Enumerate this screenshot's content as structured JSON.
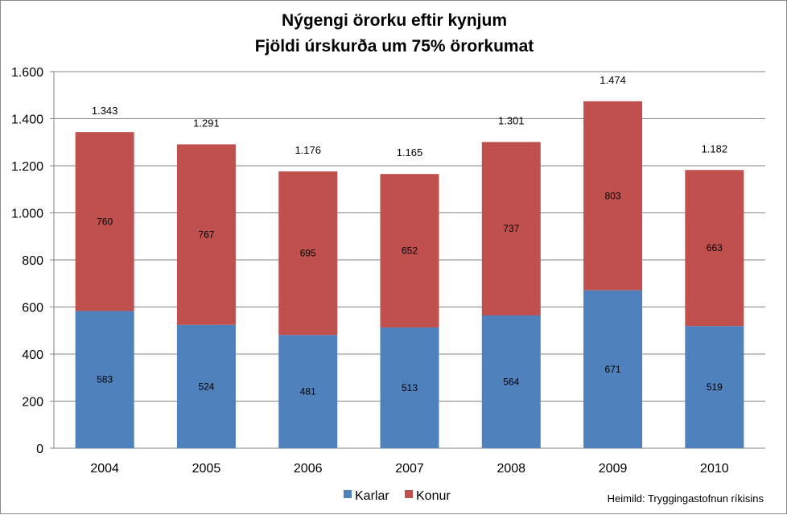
{
  "chart_data": {
    "type": "bar",
    "stacked": true,
    "title": [
      "Nýgengi örorku eftir kynjum",
      "Fjöldi úrskurða um 75% örorkumat"
    ],
    "categories": [
      "2004",
      "2005",
      "2006",
      "2007",
      "2008",
      "2009",
      "2010"
    ],
    "series": [
      {
        "name": "Karlar",
        "color": "#4F81BD",
        "values": [
          583,
          524,
          481,
          513,
          564,
          671,
          519
        ]
      },
      {
        "name": "Konur",
        "color": "#C0504D",
        "values": [
          760,
          767,
          695,
          652,
          737,
          803,
          663
        ]
      }
    ],
    "totals": [
      1343,
      1291,
      1176,
      1165,
      1301,
      1474,
      1182
    ],
    "ylim": [
      0,
      1600
    ],
    "yticks": [
      0,
      200,
      400,
      600,
      800,
      1000,
      1200,
      1400,
      1600
    ],
    "grid": true,
    "number_format": "is-IS thousands separator '.'",
    "legend_position": "bottom-center",
    "source": "Heimild: Tryggingastofnun ríkisins"
  }
}
